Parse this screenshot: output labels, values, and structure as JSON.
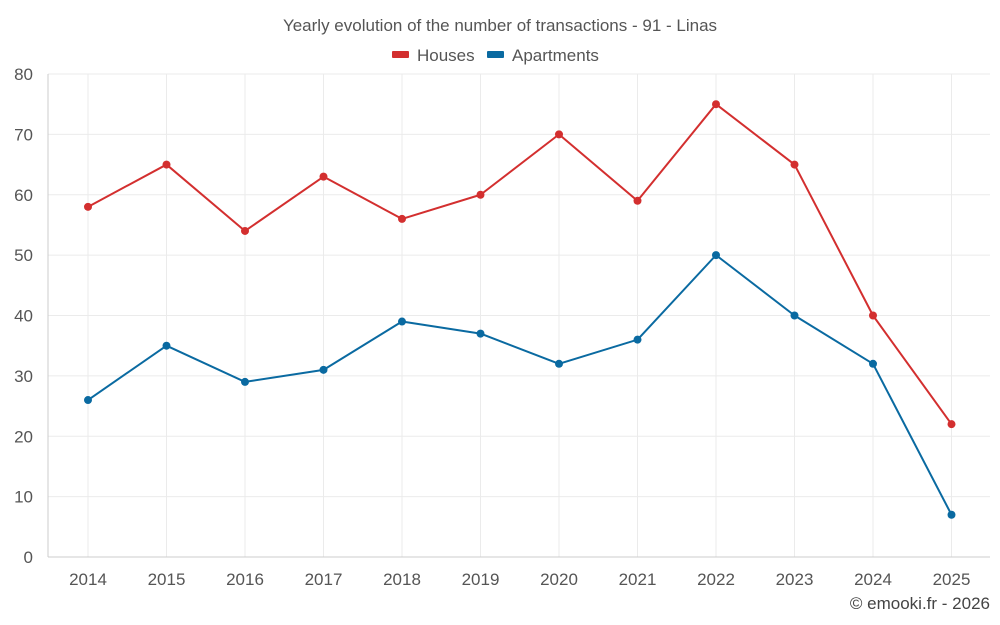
{
  "chart_data": {
    "type": "line",
    "title": "Yearly evolution of the number of transactions - 91 - Linas",
    "categories": [
      "2014",
      "2015",
      "2016",
      "2017",
      "2018",
      "2019",
      "2020",
      "2021",
      "2022",
      "2023",
      "2024",
      "2025"
    ],
    "series": [
      {
        "name": "Houses",
        "color": "#d32f2f",
        "values": [
          58,
          65,
          54,
          63,
          56,
          60,
          70,
          59,
          75,
          65,
          40,
          22
        ]
      },
      {
        "name": "Apartments",
        "color": "#0a6aa1",
        "values": [
          26,
          35,
          29,
          31,
          39,
          37,
          32,
          36,
          50,
          40,
          32,
          7
        ]
      }
    ],
    "ylim": [
      0,
      80
    ],
    "yticks": [
      0,
      10,
      20,
      30,
      40,
      50,
      60,
      70,
      80
    ],
    "xlabel": "",
    "ylabel": "",
    "grid": true,
    "legend": "top-center"
  },
  "credit": "© emooki.fr - 2026"
}
